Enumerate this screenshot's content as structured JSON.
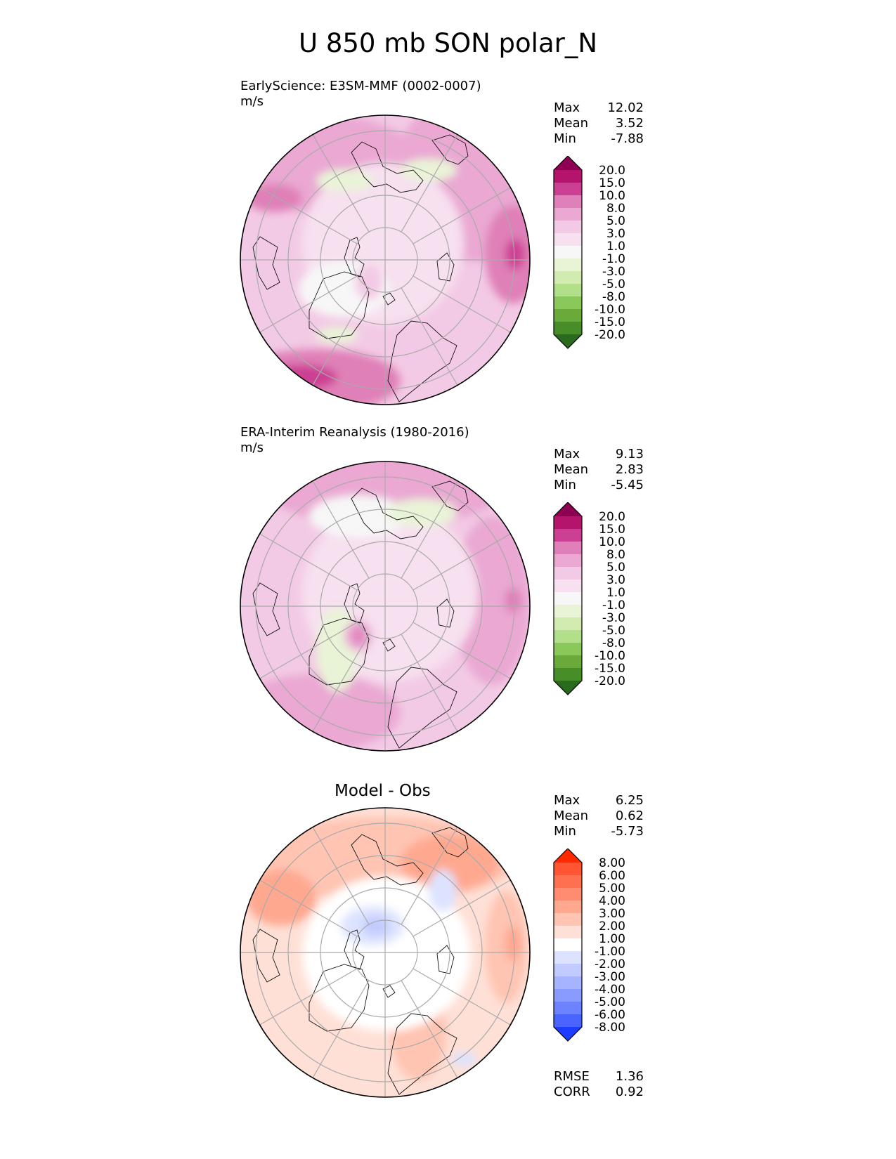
{
  "title": "U 850 mb SON polar_N",
  "panels": [
    {
      "title_lines": [
        "EarlyScience: E3SM-MMF (0002-0007)",
        "m/s"
      ],
      "stats": [
        {
          "label": "Max",
          "value": "12.02"
        },
        {
          "label": "Mean",
          "value": "3.52"
        },
        {
          "label": "Min",
          "value": "-7.88"
        }
      ],
      "colorbar": {
        "ticks": [
          "20.0",
          "15.0",
          "10.0",
          "8.0",
          "5.0",
          "3.0",
          "1.0",
          "-1.0",
          "-3.0",
          "-5.0",
          "-8.0",
          "-10.0",
          "-15.0",
          "-20.0"
        ],
        "colors": [
          "#8e0152",
          "#b5146c",
          "#cc4093",
          "#df80b8",
          "#eaa8d3",
          "#f3cae5",
          "#f7e0ef",
          "#f7f7f7",
          "#e9f4d7",
          "#d2ebb0",
          "#b2df8a",
          "#8bc85c",
          "#6aaa3b",
          "#478d28",
          "#2a6a1e"
        ]
      }
    },
    {
      "title_lines": [
        "ERA-Interim Reanalysis (1980-2016)",
        "m/s"
      ],
      "stats": [
        {
          "label": "Max",
          "value": "9.13"
        },
        {
          "label": "Mean",
          "value": "2.83"
        },
        {
          "label": "Min",
          "value": "-5.45"
        }
      ],
      "colorbar": {
        "ticks": [
          "20.0",
          "15.0",
          "10.0",
          "8.0",
          "5.0",
          "3.0",
          "1.0",
          "-1.0",
          "-3.0",
          "-5.0",
          "-8.0",
          "-10.0",
          "-15.0",
          "-20.0"
        ],
        "colors": [
          "#8e0152",
          "#b5146c",
          "#cc4093",
          "#df80b8",
          "#eaa8d3",
          "#f3cae5",
          "#f7e0ef",
          "#f7f7f7",
          "#e9f4d7",
          "#d2ebb0",
          "#b2df8a",
          "#8bc85c",
          "#6aaa3b",
          "#478d28",
          "#2a6a1e"
        ]
      }
    },
    {
      "title": "Model - Obs",
      "stats": [
        {
          "label": "Max",
          "value": "6.25"
        },
        {
          "label": "Mean",
          "value": "0.62"
        },
        {
          "label": "Min",
          "value": "-5.73"
        }
      ],
      "extra_stats": [
        {
          "label": "RMSE",
          "value": "1.36"
        },
        {
          "label": "CORR",
          "value": "0.92"
        }
      ],
      "colorbar": {
        "ticks": [
          "8.00",
          "6.00",
          "5.00",
          "4.00",
          "3.00",
          "2.00",
          "1.00",
          "-1.00",
          "-2.00",
          "-3.00",
          "-4.00",
          "-5.00",
          "-6.00",
          "-8.00"
        ],
        "colors": [
          "#ff2a00",
          "#ff5533",
          "#ff7050",
          "#ff8c70",
          "#ffa890",
          "#ffc4b2",
          "#ffe0d6",
          "#ffffff",
          "#dde3ff",
          "#c2cbff",
          "#a6b3ff",
          "#8a9bff",
          "#6c82ff",
          "#4a64ff",
          "#1e3cff"
        ]
      }
    }
  ],
  "chart_data": [
    {
      "type": "heatmap",
      "projection": "north polar stereographic",
      "title": "EarlyScience: E3SM-MMF (0002-0007)",
      "units": "m/s",
      "stats": {
        "max": 12.02,
        "mean": 3.52,
        "min": -7.88
      },
      "levels": [
        -20,
        -15,
        -10,
        -8,
        -5,
        -3,
        -1,
        1,
        3,
        5,
        8,
        10,
        15,
        20
      ]
    },
    {
      "type": "heatmap",
      "projection": "north polar stereographic",
      "title": "ERA-Interim Reanalysis (1980-2016)",
      "units": "m/s",
      "stats": {
        "max": 9.13,
        "mean": 2.83,
        "min": -5.45
      },
      "levels": [
        -20,
        -15,
        -10,
        -8,
        -5,
        -3,
        -1,
        1,
        3,
        5,
        8,
        10,
        15,
        20
      ]
    },
    {
      "type": "heatmap",
      "projection": "north polar stereographic",
      "title": "Model - Obs",
      "stats": {
        "max": 6.25,
        "mean": 0.62,
        "min": -5.73,
        "rmse": 1.36,
        "corr": 0.92
      },
      "levels": [
        -8,
        -6,
        -5,
        -4,
        -3,
        -2,
        -1,
        1,
        2,
        3,
        4,
        5,
        6,
        8
      ]
    }
  ]
}
